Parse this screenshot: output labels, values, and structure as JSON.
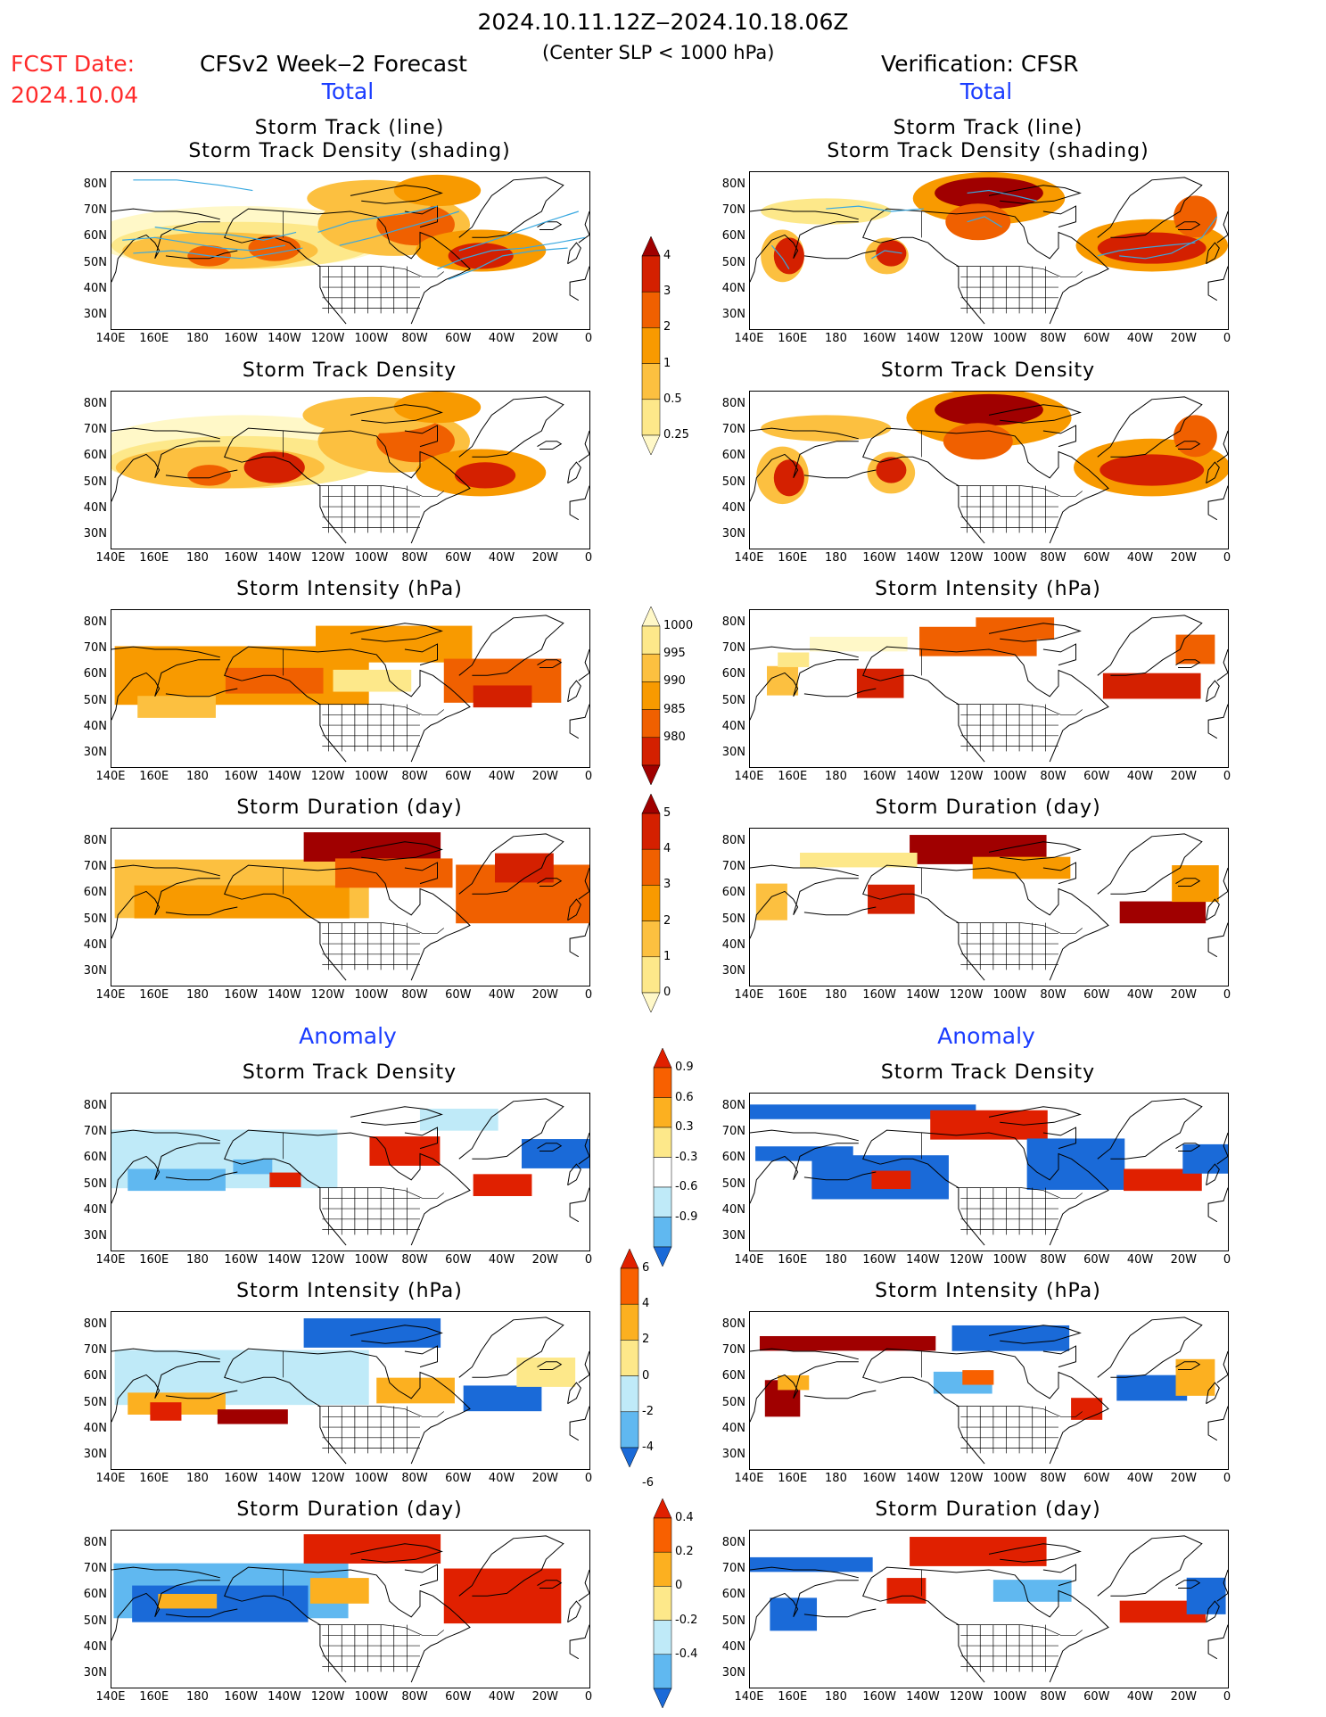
{
  "header": {
    "valid_period": "2024.10.11.12Z‒2024.10.18.06Z",
    "condition": "(Center SLP < 1000 hPa)",
    "fcst_date_label": "FCST Date:",
    "fcst_date_value": "2024.10.04",
    "model_label": "CFSv2 Week‒2 Forecast",
    "verification_label": "Verification: CFSR"
  },
  "sections": {
    "total_left": "Total",
    "total_right": "Total",
    "anomaly_left": "Anomaly",
    "anomaly_right": "Anomaly"
  },
  "panel_titles": {
    "track_line": "Storm Track (line)",
    "track_shading": "Storm Track Density (shading)",
    "density": "Storm Track Density",
    "intensity": "Storm Intensity (hPa)",
    "duration": "Storm Duration (day)"
  },
  "axes": {
    "lat_labels": [
      "80N",
      "70N",
      "60N",
      "50N",
      "40N",
      "30N"
    ],
    "lon_labels": [
      "140E",
      "160E",
      "180",
      "160W",
      "140W",
      "120W",
      "100W",
      "80W",
      "60W",
      "40W",
      "20W",
      "0"
    ]
  },
  "colorbars": {
    "density_total": {
      "labels": [
        "4",
        "3",
        "2",
        "1",
        "0.5",
        "0.25"
      ],
      "colors": [
        "#a00000",
        "#d42000",
        "#f06000",
        "#f89a00",
        "#fcc040",
        "#fde88a",
        "#fff8c8"
      ]
    },
    "intensity_total": {
      "labels": [
        "1000",
        "995",
        "990",
        "985",
        "980"
      ],
      "colors": [
        "#fff8c8",
        "#fde88a",
        "#fcc040",
        "#f89a00",
        "#f06000",
        "#d42000",
        "#a00000"
      ]
    },
    "duration_total": {
      "labels": [
        "5",
        "4",
        "3",
        "2",
        "1",
        "0"
      ],
      "colors": [
        "#a00000",
        "#d42000",
        "#f06000",
        "#f89a00",
        "#fcc040",
        "#fde88a",
        "#fff8c8"
      ]
    },
    "density_anom": {
      "labels": [
        "0.9",
        "0.6",
        "0.3",
        "-0.3",
        "-0.6",
        "-0.9"
      ],
      "colors": [
        "#e02000",
        "#f86000",
        "#fcb020",
        "#fde88a",
        "#ffffff",
        "#bfeaf8",
        "#60b8f0",
        "#1a6ad8"
      ]
    },
    "intensity_anom": {
      "labels": [
        "6",
        "4",
        "2",
        "0",
        "-2",
        "-4",
        "-6"
      ],
      "colors": [
        "#e02000",
        "#f86000",
        "#fcb020",
        "#fde88a",
        "#bfeaf8",
        "#60b8f0",
        "#1a6ad8"
      ]
    },
    "duration_anom": {
      "labels": [
        "0.4",
        "0.2",
        "0",
        "-0.2",
        "-0.4"
      ],
      "colors": [
        "#e02000",
        "#f86000",
        "#fcb020",
        "#fde88a",
        "#bfeaf8",
        "#60b8f0",
        "#1a6ad8"
      ]
    }
  }
}
